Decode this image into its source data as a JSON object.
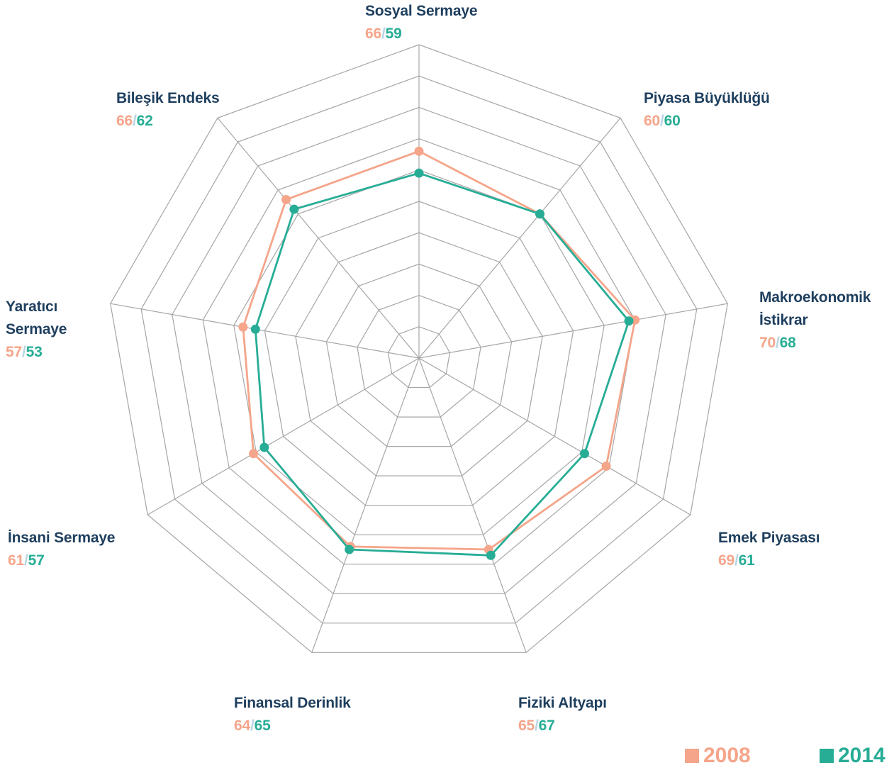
{
  "chart_data": {
    "type": "radar",
    "axes": [
      {
        "name": "Sosyal Sermaye",
        "v2008": "66",
        "v2014": "59"
      },
      {
        "name": "Piyasa Büyüklüğü",
        "v2008": "60",
        "v2014": "60"
      },
      {
        "name": "Makroekonomik\nİstikrar",
        "v2008": "70",
        "v2014": "68"
      },
      {
        "name": "Emek Piyasası",
        "v2008": "69",
        "v2014": "61"
      },
      {
        "name": "Fiziki Altyapı",
        "v2008": "65",
        "v2014": "67"
      },
      {
        "name": "Finansal Derinlik",
        "v2008": "64",
        "v2014": "65"
      },
      {
        "name": "İnsani Sermaye",
        "v2008": "61",
        "v2014": "57"
      },
      {
        "name": "Yaratıcı\nSermaye",
        "v2008": "57",
        "v2014": "53"
      },
      {
        "name": "Bileşik Endeks",
        "v2008": "66",
        "v2014": "62"
      }
    ],
    "series": [
      {
        "name": "2008",
        "color": "#f4a58a",
        "values": [
          66,
          60,
          70,
          69,
          65,
          64,
          61,
          57,
          66
        ]
      },
      {
        "name": "2014",
        "color": "#27ad96",
        "values": [
          59,
          60,
          68,
          61,
          67,
          65,
          57,
          53,
          62
        ]
      }
    ],
    "value_separator": "/",
    "range": [
      0,
      100
    ],
    "rings": 10,
    "legend_position": "bottom-right",
    "grid_color": "#a6a6a6"
  }
}
